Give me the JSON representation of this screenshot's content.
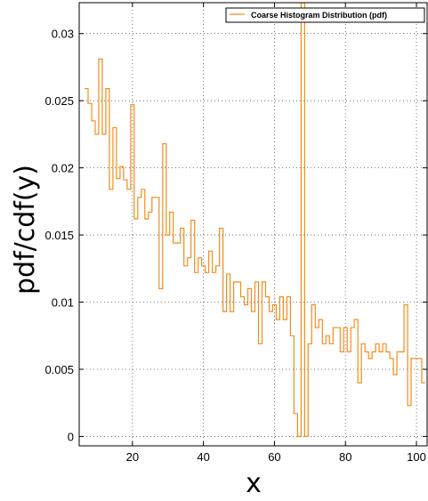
{
  "chart_data": {
    "type": "line",
    "drawstyle": "steps",
    "xlabel": "x",
    "ylabel": "pdf/cdf(y)",
    "xlim": [
      5,
      103
    ],
    "ylim": [
      -0.0007,
      0.0323
    ],
    "xticks": [
      20,
      40,
      60,
      80,
      100
    ],
    "xtick_labels": [
      "20",
      "40",
      "60",
      "80",
      "100"
    ],
    "yticks": [
      0,
      0.005,
      0.01,
      0.015,
      0.02,
      0.025,
      0.03
    ],
    "ytick_labels": [
      "0",
      "0.005",
      "0.01",
      "0.015",
      "0.02",
      "0.025",
      "0.03"
    ],
    "grid": true,
    "legend_position": "top-right",
    "colors": {
      "series": "#f28e1c",
      "grid": "#555555",
      "frame": "#000000"
    },
    "series": [
      {
        "name": "Coarse Histogram Distribution (pdf)",
        "x": [
          7,
          8,
          9,
          10,
          11,
          12,
          13,
          14,
          15,
          16,
          17,
          18,
          19,
          20,
          21,
          22,
          23,
          24,
          25,
          26,
          27,
          28,
          29,
          30,
          31,
          32,
          33,
          34,
          35,
          36,
          37,
          38,
          39,
          40,
          41,
          42,
          43,
          44,
          45,
          46,
          47,
          48,
          49,
          50,
          51,
          52,
          53,
          54,
          55,
          56,
          57,
          58,
          59,
          60,
          61,
          62,
          63,
          64,
          65,
          66,
          67,
          68,
          69,
          70,
          71,
          72,
          73,
          74,
          75,
          76,
          77,
          78,
          79,
          80,
          81,
          82,
          83,
          84,
          85,
          86,
          87,
          88,
          89,
          90,
          91,
          92,
          93,
          94,
          95,
          96,
          97,
          98,
          99,
          100,
          101,
          102
        ],
        "y": [
          0.0259,
          0.0248,
          0.0235,
          0.0225,
          0.0281,
          0.0225,
          0.0259,
          0.0184,
          0.023,
          0.0192,
          0.0201,
          0.0191,
          0.0184,
          0.0247,
          0.0162,
          0.0178,
          0.0184,
          0.0162,
          0.0167,
          0.0178,
          0.0178,
          0.011,
          0.0218,
          0.015,
          0.0167,
          0.0144,
          0.0144,
          0.0155,
          0.0127,
          0.0133,
          0.0161,
          0.0122,
          0.0133,
          0.0127,
          0.0122,
          0.0138,
          0.0122,
          0.0127,
          0.0155,
          0.0093,
          0.0121,
          0.0093,
          0.0115,
          0.0115,
          0.0104,
          0.0098,
          0.011,
          0.0093,
          0.0115,
          0.0069,
          0.0115,
          0.0104,
          0.0093,
          0.0098,
          0.0087,
          0.0104,
          0.0087,
          0.0104,
          0.0075,
          0.0017,
          0.0,
          0.0323,
          0.0,
          0.0069,
          0.0098,
          0.0081,
          0.0087,
          0.0069,
          0.0075,
          0.0069,
          0.0081,
          0.0081,
          0.0063,
          0.0081,
          0.0063,
          0.0081,
          0.0087,
          0.004,
          0.0069,
          0.0063,
          0.0058,
          0.0063,
          0.0069,
          0.0063,
          0.0069,
          0.0063,
          0.0058,
          0.0046,
          0.0063,
          0.0063,
          0.0098,
          0.0023,
          0.0058,
          0.0058,
          0.0058,
          0.004
        ]
      }
    ]
  }
}
